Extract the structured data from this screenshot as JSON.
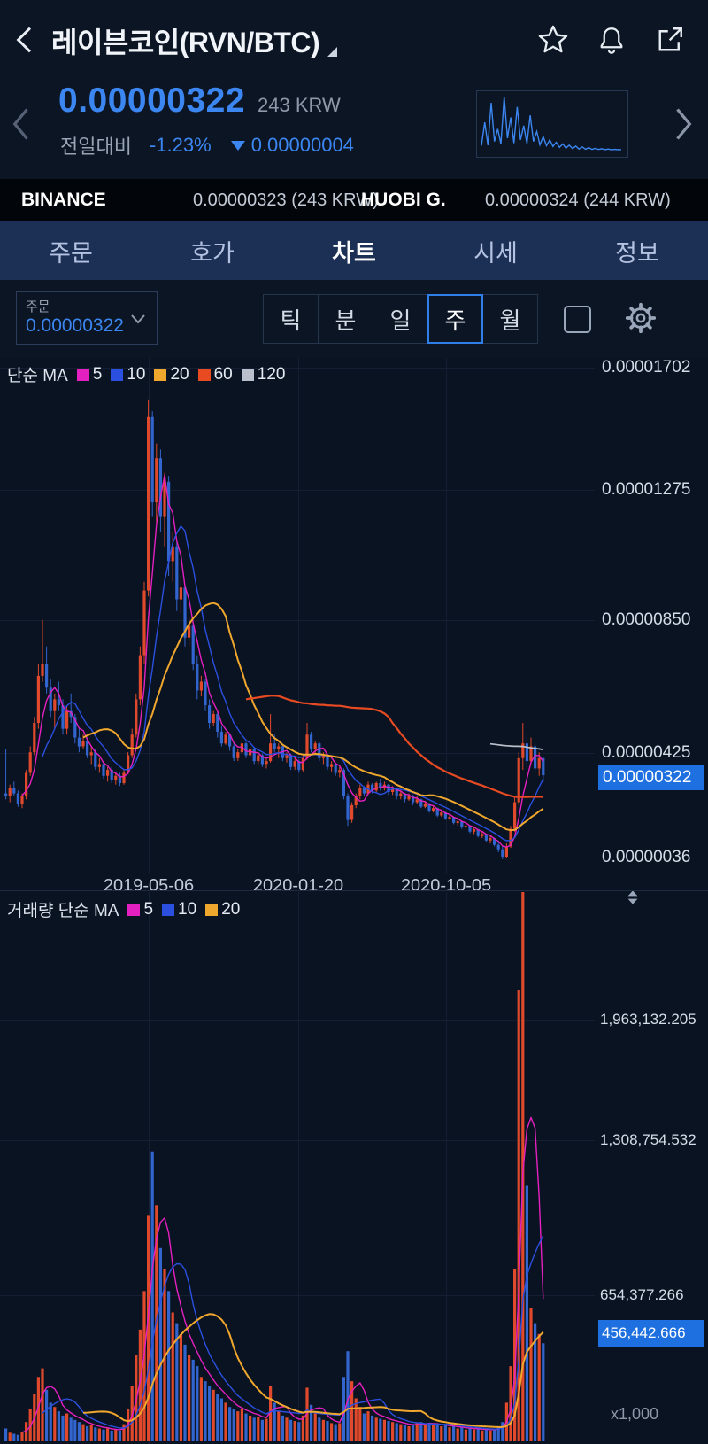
{
  "colors": {
    "accent": "#3b86f0",
    "up": "#e0492b",
    "down": "#3365cf",
    "tag": "#1e6fe0"
  },
  "header": {
    "title": "레이븐코인(RVN/BTC)"
  },
  "ticker": {
    "price": "0.00000322",
    "price_krw": "243 KRW",
    "change_label": "전일대비",
    "change_percent": "-1.23%",
    "change_value": "0.00000004",
    "change_direction": "down",
    "sparkline": {
      "color": "#3b86f0",
      "values": [
        420,
        980,
        430,
        1450,
        520,
        820,
        460,
        1600,
        600,
        1100,
        480,
        1350,
        560,
        900,
        470,
        1150,
        520,
        760,
        440,
        640,
        420,
        560,
        400,
        500,
        380,
        460,
        360,
        430,
        350,
        410,
        340,
        390,
        335,
        370,
        330,
        355,
        328,
        345,
        325,
        338,
        323,
        330,
        322,
        326
      ]
    }
  },
  "exchange_compare": [
    {
      "name": "BINANCE",
      "price": "0.00000323 (243 KRW)"
    },
    {
      "name": "HUOBI G.",
      "price": "0.00000324 (244 KRW)"
    }
  ],
  "tabs": [
    {
      "label": "주문",
      "active": false
    },
    {
      "label": "호가",
      "active": false
    },
    {
      "label": "차트",
      "active": true
    },
    {
      "label": "시세",
      "active": false
    },
    {
      "label": "정보",
      "active": false
    }
  ],
  "toolbar": {
    "dropdown_label": "주문",
    "dropdown_value": "0.00000322",
    "intervals": [
      {
        "label": "틱",
        "selected": false
      },
      {
        "label": "분",
        "selected": false
      },
      {
        "label": "일",
        "selected": false
      },
      {
        "label": "주",
        "selected": true
      },
      {
        "label": "월",
        "selected": false
      }
    ]
  },
  "chart_data": [
    {
      "type": "candlestick",
      "legend_title": "단순 MA",
      "legend": [
        {
          "label": "5",
          "color": "#e520c0"
        },
        {
          "label": "10",
          "color": "#2b50e0"
        },
        {
          "label": "20",
          "color": "#f0a72e"
        },
        {
          "label": "60",
          "color": "#e84b22"
        },
        {
          "label": "120",
          "color": "#b9c0cc"
        }
      ],
      "colors": {
        "up": "#e0492b",
        "down": "#3365cf"
      },
      "y_axis_labels": [
        "0.00001702",
        "0.00001275",
        "0.00000850",
        "0.00000425",
        "0.00000036"
      ],
      "current_price_label": "0.00000322",
      "x_axis_labels": [
        "2019-05-06",
        "2020-01-20",
        "2020-10-05"
      ],
      "y_scale": {
        "top_value": 1702,
        "bottom_value": 36,
        "unit": "1e-8 BTC"
      },
      "ma": [
        {
          "period": 5,
          "color": "#e520c0",
          "width": 1.4
        },
        {
          "period": 10,
          "color": "#2b50e0",
          "width": 1.4
        },
        {
          "period": 20,
          "color": "#f0a72e",
          "width": 2
        },
        {
          "period": 60,
          "color": "#e84b22",
          "width": 2.2
        },
        {
          "period": 120,
          "color": "#b9c0cc",
          "width": 1.7
        }
      ],
      "candles": [
        [
          260,
          410,
          240,
          250,
          60
        ],
        [
          250,
          290,
          230,
          280,
          40
        ],
        [
          280,
          300,
          250,
          260,
          35
        ],
        [
          260,
          270,
          215,
          225,
          30
        ],
        [
          225,
          260,
          210,
          250,
          45
        ],
        [
          250,
          340,
          240,
          330,
          90
        ],
        [
          330,
          420,
          320,
          400,
          150
        ],
        [
          400,
          520,
          390,
          500,
          220
        ],
        [
          500,
          700,
          480,
          660,
          300
        ],
        [
          660,
          850,
          640,
          700,
          340
        ],
        [
          700,
          760,
          600,
          620,
          240
        ],
        [
          620,
          650,
          520,
          540,
          180
        ],
        [
          540,
          600,
          480,
          580,
          160
        ],
        [
          580,
          640,
          540,
          560,
          140
        ],
        [
          560,
          580,
          460,
          480,
          120
        ],
        [
          480,
          560,
          460,
          540,
          130
        ],
        [
          540,
          600,
          500,
          520,
          110
        ],
        [
          520,
          530,
          430,
          450,
          100
        ],
        [
          450,
          480,
          400,
          420,
          90
        ],
        [
          420,
          460,
          410,
          440,
          80
        ],
        [
          440,
          450,
          380,
          390,
          70
        ],
        [
          390,
          420,
          360,
          400,
          75
        ],
        [
          400,
          410,
          340,
          350,
          65
        ],
        [
          350,
          380,
          330,
          360,
          60
        ],
        [
          360,
          370,
          310,
          320,
          55
        ],
        [
          320,
          350,
          300,
          340,
          60
        ],
        [
          340,
          350,
          295,
          305,
          50
        ],
        [
          305,
          330,
          290,
          320,
          55
        ],
        [
          320,
          330,
          285,
          295,
          50
        ],
        [
          295,
          340,
          290,
          330,
          80
        ],
        [
          330,
          400,
          325,
          390,
          150
        ],
        [
          390,
          480,
          380,
          460,
          260
        ],
        [
          460,
          600,
          450,
          580,
          400
        ],
        [
          580,
          760,
          560,
          730,
          520
        ],
        [
          730,
          980,
          700,
          950,
          700
        ],
        [
          950,
          1600,
          930,
          1540,
          1050
        ],
        [
          1540,
          1560,
          1200,
          1250,
          1350
        ],
        [
          1250,
          1450,
          1180,
          1400,
          1100
        ],
        [
          1400,
          1430,
          1150,
          1200,
          900
        ],
        [
          1200,
          1350,
          1100,
          1320,
          800
        ],
        [
          1320,
          1340,
          1000,
          1050,
          700
        ],
        [
          1050,
          1150,
          980,
          1100,
          600
        ],
        [
          1100,
          1120,
          880,
          920,
          550
        ],
        [
          920,
          1000,
          870,
          960,
          500
        ],
        [
          960,
          970,
          760,
          790,
          450
        ],
        [
          790,
          860,
          760,
          830,
          400
        ],
        [
          830,
          840,
          680,
          700,
          380
        ],
        [
          700,
          730,
          580,
          610,
          350
        ],
        [
          610,
          660,
          590,
          640,
          300
        ],
        [
          640,
          650,
          540,
          560,
          280
        ],
        [
          560,
          580,
          480,
          500,
          260
        ],
        [
          500,
          540,
          490,
          530,
          240
        ],
        [
          530,
          540,
          450,
          470,
          220
        ],
        [
          470,
          490,
          420,
          430,
          200
        ],
        [
          430,
          470,
          425,
          460,
          180
        ],
        [
          460,
          465,
          405,
          420,
          160
        ],
        [
          420,
          430,
          370,
          380,
          150
        ],
        [
          380,
          410,
          370,
          400,
          140
        ],
        [
          400,
          440,
          390,
          430,
          150
        ],
        [
          430,
          435,
          380,
          390,
          130
        ],
        [
          390,
          420,
          380,
          410,
          120
        ],
        [
          410,
          415,
          360,
          370,
          110
        ],
        [
          370,
          400,
          360,
          390,
          115
        ],
        [
          390,
          395,
          350,
          360,
          100
        ],
        [
          360,
          380,
          345,
          370,
          105
        ],
        [
          370,
          530,
          365,
          430,
          260
        ],
        [
          430,
          460,
          400,
          410,
          180
        ],
        [
          410,
          430,
          380,
          420,
          140
        ],
        [
          420,
          425,
          370,
          380,
          120
        ],
        [
          380,
          400,
          365,
          390,
          110
        ],
        [
          390,
          395,
          340,
          350,
          100
        ],
        [
          350,
          380,
          340,
          370,
          95
        ],
        [
          370,
          375,
          330,
          340,
          90
        ],
        [
          340,
          390,
          335,
          380,
          120
        ],
        [
          380,
          500,
          375,
          460,
          250
        ],
        [
          460,
          470,
          400,
          410,
          170
        ],
        [
          410,
          440,
          395,
          430,
          130
        ],
        [
          430,
          435,
          370,
          380,
          110
        ],
        [
          380,
          400,
          360,
          390,
          100
        ],
        [
          390,
          392,
          340,
          350,
          95
        ],
        [
          350,
          370,
          335,
          360,
          85
        ],
        [
          360,
          365,
          320,
          330,
          80
        ],
        [
          330,
          350,
          315,
          340,
          85
        ],
        [
          340,
          345,
          240,
          250,
          300
        ],
        [
          250,
          260,
          150,
          170,
          420
        ],
        [
          170,
          230,
          160,
          220,
          280
        ],
        [
          220,
          260,
          210,
          250,
          200
        ],
        [
          250,
          290,
          240,
          280,
          160
        ],
        [
          280,
          285,
          250,
          260,
          130
        ],
        [
          260,
          300,
          255,
          290,
          140
        ],
        [
          290,
          295,
          260,
          270,
          120
        ],
        [
          270,
          300,
          265,
          295,
          110
        ],
        [
          295,
          310,
          270,
          280,
          105
        ],
        [
          280,
          300,
          270,
          290,
          100
        ],
        [
          290,
          292,
          255,
          265,
          95
        ],
        [
          265,
          285,
          255,
          275,
          90
        ],
        [
          275,
          280,
          240,
          250,
          85
        ],
        [
          250,
          270,
          240,
          260,
          80
        ],
        [
          260,
          262,
          230,
          240,
          75
        ],
        [
          240,
          260,
          235,
          250,
          70
        ],
        [
          250,
          255,
          220,
          230,
          80
        ],
        [
          230,
          250,
          225,
          240,
          85
        ],
        [
          240,
          242,
          210,
          215,
          90
        ],
        [
          215,
          235,
          210,
          225,
          80
        ],
        [
          225,
          228,
          195,
          200,
          85
        ],
        [
          200,
          220,
          195,
          210,
          75
        ],
        [
          210,
          212,
          180,
          185,
          80
        ],
        [
          185,
          205,
          180,
          195,
          70
        ],
        [
          195,
          197,
          170,
          175,
          75
        ],
        [
          175,
          190,
          170,
          180,
          65
        ],
        [
          180,
          182,
          155,
          160,
          70
        ],
        [
          160,
          175,
          150,
          165,
          60
        ],
        [
          165,
          167,
          140,
          145,
          65
        ],
        [
          145,
          160,
          138,
          150,
          55
        ],
        [
          150,
          152,
          125,
          130,
          60
        ],
        [
          130,
          145,
          122,
          138,
          55
        ],
        [
          138,
          140,
          110,
          115,
          60
        ],
        [
          115,
          130,
          108,
          122,
          50
        ],
        [
          122,
          124,
          95,
          100,
          55
        ],
        [
          100,
          115,
          90,
          108,
          50
        ],
        [
          108,
          110,
          80,
          85,
          60
        ],
        [
          85,
          100,
          60,
          70,
          70
        ],
        [
          70,
          80,
          36,
          45,
          90
        ],
        [
          45,
          90,
          40,
          80,
          180
        ],
        [
          80,
          150,
          75,
          140,
          350
        ],
        [
          140,
          250,
          130,
          230,
          800
        ],
        [
          230,
          400,
          220,
          380,
          2100
        ],
        [
          380,
          500,
          340,
          430,
          2830
        ],
        [
          430,
          460,
          350,
          370,
          1190
        ],
        [
          370,
          450,
          360,
          420,
          620
        ],
        [
          420,
          430,
          330,
          345,
          550
        ],
        [
          345,
          400,
          320,
          380,
          500
        ],
        [
          380,
          385,
          300,
          322,
          456.442666
        ]
      ]
    },
    {
      "type": "bar",
      "legend_title": "거래량 단순 MA",
      "legend": [
        {
          "label": "5",
          "color": "#e520c0"
        },
        {
          "label": "10",
          "color": "#2b50e0"
        },
        {
          "label": "20",
          "color": "#f0a72e"
        }
      ],
      "y_axis_labels": [
        "1,963,132.205",
        "1,308,754.532",
        "654,377.266"
      ],
      "current_volume_label": "456,442.666",
      "unit_label": "x1,000",
      "y_scale": {
        "top_value": 1963.132205,
        "unit": "x1,000"
      },
      "ma": [
        {
          "period": 5,
          "color": "#e520c0",
          "width": 1.4
        },
        {
          "period": 10,
          "color": "#2b50e0",
          "width": 1.4
        },
        {
          "period": 20,
          "color": "#f0a72e",
          "width": 2
        }
      ]
    }
  ]
}
